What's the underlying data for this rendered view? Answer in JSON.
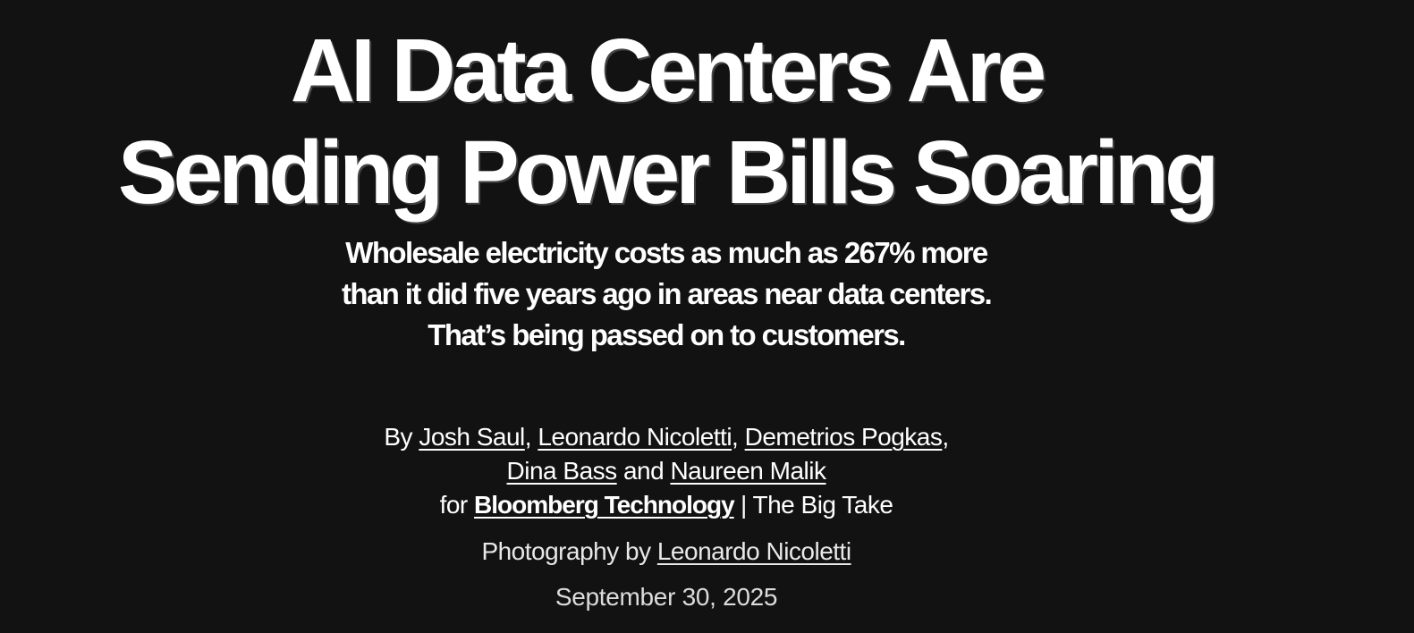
{
  "headline": {
    "line1": "AI Data Centers Are",
    "line2": "Sending Power Bills Soaring"
  },
  "dek": {
    "line1": "Wholesale electricity costs as much as 267% more",
    "line2": "than it did five years ago in areas near data centers.",
    "line3": "That’s being passed on to customers."
  },
  "byline": {
    "prefix": "By",
    "authors": [
      "Josh Saul",
      "Leonardo Nicoletti",
      "Demetrios Pogkas",
      "Dina Bass",
      "Naureen Malik"
    ],
    "and": "and",
    "for": "for",
    "publication": "Bloomberg Technology",
    "separator": "|",
    "section": "The Big Take"
  },
  "photography": {
    "prefix": "Photography by",
    "photographer": "Leonardo Nicoletti"
  },
  "date": "September 30, 2025",
  "colors": {
    "background": "#121212",
    "text": "#ffffff"
  }
}
